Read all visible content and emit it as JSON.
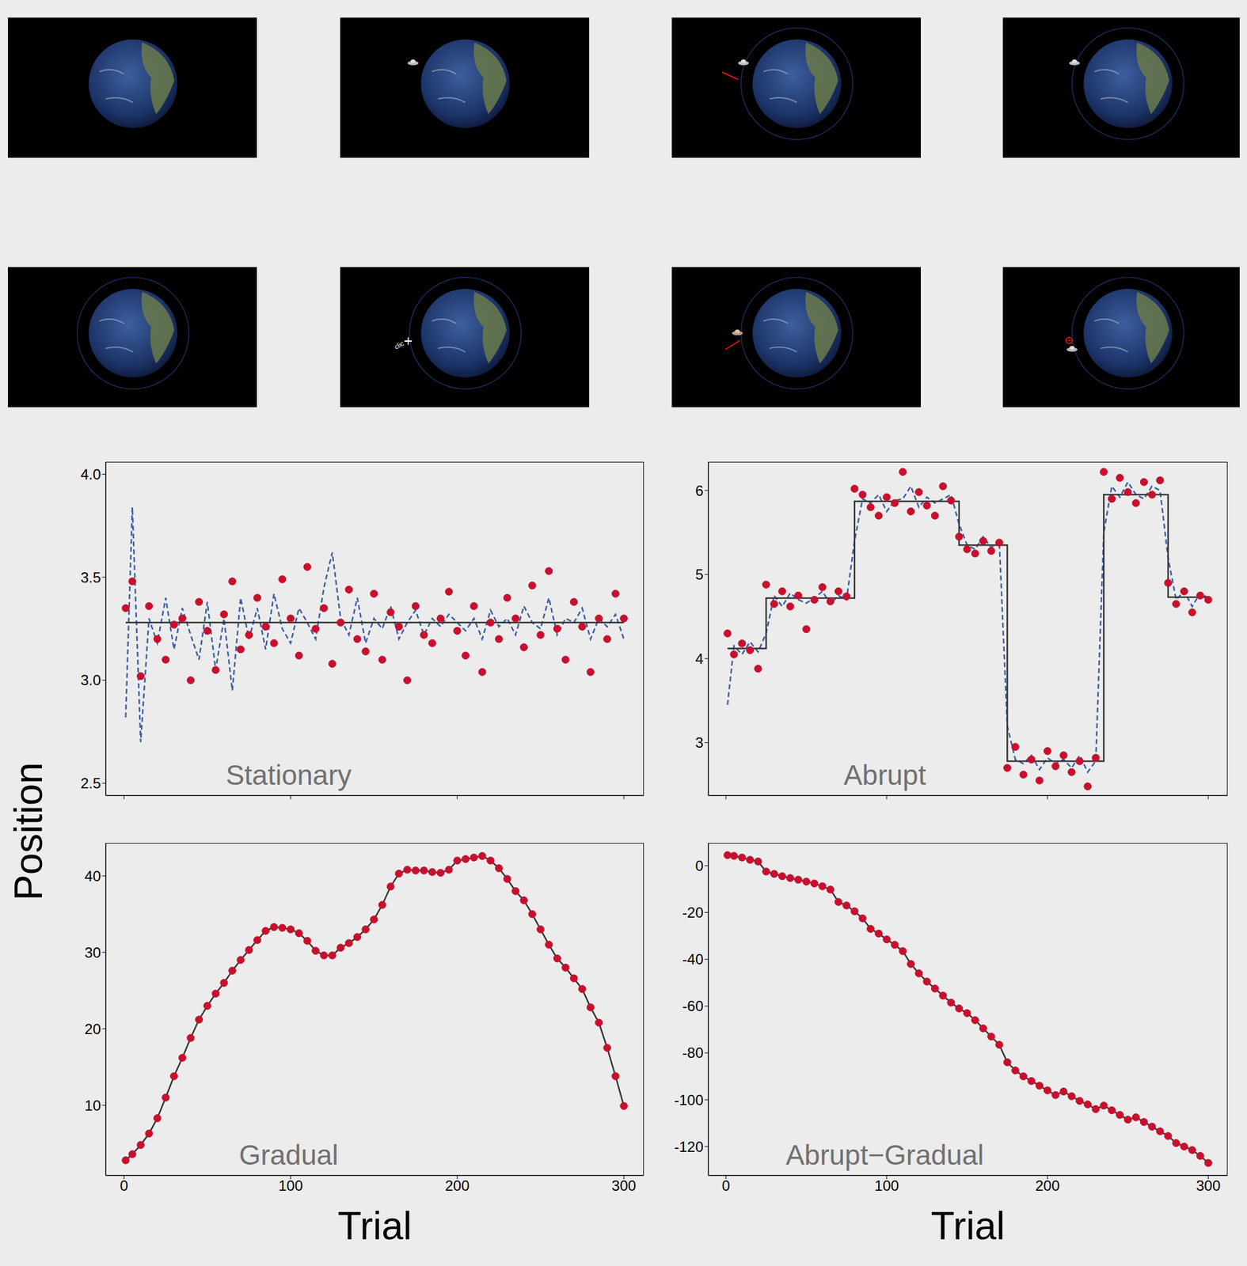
{
  "figure": {
    "ylabel": "Position",
    "xlabel": "Trial",
    "screen_cursor_text": "clic"
  },
  "chart_data": [
    {
      "type": "scatter",
      "title": "Stationary",
      "x": [
        1,
        5,
        10,
        15,
        20,
        25,
        30,
        35,
        40,
        45,
        50,
        55,
        60,
        65,
        70,
        75,
        80,
        85,
        90,
        95,
        100,
        105,
        110,
        115,
        120,
        125,
        130,
        135,
        140,
        145,
        150,
        155,
        160,
        165,
        170,
        175,
        180,
        185,
        190,
        195,
        200,
        205,
        210,
        215,
        220,
        225,
        230,
        235,
        240,
        245,
        250,
        255,
        260,
        265,
        270,
        275,
        280,
        285,
        290,
        295,
        300
      ],
      "xlim": [
        -11,
        312
      ],
      "xticks": [
        0,
        100,
        200,
        300
      ],
      "ylim": [
        2.44,
        4.06
      ],
      "yticks": [
        2.5,
        {
          "value": 3,
          "label": "3.0"
        },
        3.5,
        {
          "value": 4,
          "label": "4.0"
        }
      ],
      "tick_labels": "y",
      "grid": false,
      "series": [
        {
          "type": "scatter",
          "color": "#c8102e",
          "marker": "circle",
          "values": [
            3.35,
            3.48,
            3.02,
            3.36,
            3.2,
            3.1,
            3.27,
            3.3,
            3.0,
            3.38,
            3.24,
            3.05,
            3.32,
            3.48,
            3.15,
            3.22,
            3.4,
            3.26,
            3.18,
            3.49,
            3.3,
            3.12,
            3.55,
            3.25,
            3.35,
            3.08,
            3.28,
            3.44,
            3.2,
            3.14,
            3.42,
            3.1,
            3.33,
            3.26,
            3.0,
            3.36,
            3.22,
            3.18,
            3.3,
            3.43,
            3.24,
            3.12,
            3.36,
            3.04,
            3.28,
            3.2,
            3.4,
            3.3,
            3.16,
            3.46,
            3.22,
            3.53,
            3.25,
            3.1,
            3.38,
            3.26,
            3.04,
            3.3,
            3.2,
            3.42,
            3.3
          ]
        },
        {
          "type": "line",
          "color": "#3a5ca8",
          "line_style": "dashed",
          "values": [
            2.82,
            3.84,
            2.7,
            3.3,
            3.18,
            3.4,
            3.15,
            3.35,
            3.22,
            3.1,
            3.38,
            3.05,
            3.3,
            2.95,
            3.4,
            3.2,
            3.35,
            3.15,
            3.42,
            3.25,
            3.18,
            3.35,
            3.28,
            3.2,
            3.45,
            3.62,
            3.3,
            3.22,
            3.4,
            3.18,
            3.3,
            3.25,
            3.36,
            3.2,
            3.28,
            3.34,
            3.22,
            3.3,
            3.26,
            3.32,
            3.28,
            3.24,
            3.3,
            3.2,
            3.34,
            3.26,
            3.3,
            3.22,
            3.36,
            3.28,
            3.25,
            3.4,
            3.22,
            3.3,
            3.28,
            3.35,
            3.2,
            3.3,
            3.26,
            3.32,
            3.2
          ]
        },
        {
          "type": "line",
          "color": "#333333",
          "line_style": "solid",
          "values": [
            3.28,
            3.28,
            3.28,
            3.28,
            3.28,
            3.28,
            3.28,
            3.28,
            3.28,
            3.28,
            3.28,
            3.28,
            3.28,
            3.28,
            3.28,
            3.28,
            3.28,
            3.28,
            3.28,
            3.28,
            3.28,
            3.28,
            3.28,
            3.28,
            3.28,
            3.28,
            3.28,
            3.28,
            3.28,
            3.28,
            3.28,
            3.28,
            3.28,
            3.28,
            3.28,
            3.28,
            3.28,
            3.28,
            3.28,
            3.28,
            3.28,
            3.28,
            3.28,
            3.28,
            3.28,
            3.28,
            3.28,
            3.28,
            3.28,
            3.28,
            3.28,
            3.28,
            3.28,
            3.28,
            3.28,
            3.28,
            3.28,
            3.28,
            3.28,
            3.28,
            3.28
          ]
        }
      ]
    },
    {
      "type": "scatter",
      "title": "Abrupt",
      "x": [
        1,
        5,
        10,
        15,
        20,
        25,
        30,
        35,
        40,
        45,
        50,
        55,
        60,
        65,
        70,
        75,
        80,
        85,
        90,
        95,
        100,
        105,
        110,
        115,
        120,
        125,
        130,
        135,
        140,
        145,
        150,
        155,
        160,
        165,
        170,
        175,
        180,
        185,
        190,
        195,
        200,
        205,
        210,
        215,
        220,
        225,
        230,
        235,
        240,
        245,
        250,
        255,
        260,
        265,
        270,
        275,
        280,
        285,
        290,
        295,
        300
      ],
      "xlim": [
        -11,
        312
      ],
      "xticks": [
        0,
        100,
        200,
        300
      ],
      "ylim": [
        2.37,
        6.34
      ],
      "yticks": [
        3,
        4,
        5,
        6
      ],
      "tick_labels": "y",
      "grid": false,
      "series": [
        {
          "type": "scatter",
          "color": "#c8102e",
          "marker": "circle",
          "values": [
            4.3,
            4.05,
            4.18,
            4.1,
            3.88,
            4.88,
            4.65,
            4.8,
            4.62,
            4.75,
            4.35,
            4.7,
            4.85,
            4.68,
            4.8,
            4.74,
            6.02,
            5.95,
            5.8,
            5.7,
            5.92,
            5.85,
            6.22,
            5.75,
            5.98,
            5.82,
            5.7,
            6.05,
            5.88,
            5.45,
            5.3,
            5.25,
            5.4,
            5.28,
            5.38,
            2.7,
            2.95,
            2.62,
            2.8,
            2.55,
            2.9,
            2.72,
            2.85,
            2.65,
            2.78,
            2.48,
            2.82,
            6.22,
            5.9,
            6.15,
            5.98,
            5.85,
            6.1,
            5.95,
            6.12,
            4.9,
            4.65,
            4.8,
            4.55,
            4.75,
            4.7
          ]
        },
        {
          "type": "line",
          "color": "#3a5ca8",
          "line_style": "dashed",
          "values": [
            3.45,
            4.15,
            4.05,
            4.2,
            4.08,
            4.3,
            4.75,
            4.62,
            4.78,
            4.7,
            4.66,
            4.72,
            4.8,
            4.65,
            4.75,
            4.7,
            5.4,
            5.9,
            5.85,
            5.95,
            5.75,
            5.88,
            5.9,
            6.05,
            5.8,
            5.92,
            5.85,
            5.9,
            5.95,
            5.6,
            5.35,
            5.3,
            5.45,
            5.32,
            5.4,
            3.2,
            2.8,
            2.75,
            2.85,
            2.68,
            2.82,
            2.75,
            2.8,
            2.7,
            2.85,
            2.65,
            2.78,
            5.5,
            6.05,
            5.92,
            6.1,
            5.95,
            5.9,
            6.05,
            6.0,
            5.2,
            4.7,
            4.8,
            4.62,
            4.78,
            4.72
          ]
        },
        {
          "type": "step",
          "color": "#333333",
          "line_style": "solid",
          "values": [
            4.12,
            4.12,
            4.12,
            4.12,
            4.12,
            4.72,
            4.72,
            4.72,
            4.72,
            4.72,
            4.72,
            4.72,
            4.72,
            4.72,
            4.72,
            4.72,
            5.87,
            5.87,
            5.87,
            5.87,
            5.87,
            5.87,
            5.87,
            5.87,
            5.87,
            5.87,
            5.87,
            5.87,
            5.87,
            5.35,
            5.35,
            5.35,
            5.35,
            5.35,
            5.35,
            2.78,
            2.78,
            2.78,
            2.78,
            2.78,
            2.78,
            2.78,
            2.78,
            2.78,
            2.78,
            2.78,
            2.78,
            5.95,
            5.95,
            5.95,
            5.95,
            5.95,
            5.95,
            5.95,
            5.95,
            4.73,
            4.73,
            4.73,
            4.73,
            4.73,
            4.73
          ]
        }
      ]
    },
    {
      "type": "scatter",
      "title": "Gradual",
      "x": [
        1,
        5,
        10,
        15,
        20,
        25,
        30,
        35,
        40,
        45,
        50,
        55,
        60,
        65,
        70,
        75,
        80,
        85,
        90,
        95,
        100,
        105,
        110,
        115,
        120,
        125,
        130,
        135,
        140,
        145,
        150,
        155,
        160,
        165,
        170,
        175,
        180,
        185,
        190,
        195,
        200,
        205,
        210,
        215,
        220,
        225,
        230,
        235,
        240,
        245,
        250,
        255,
        260,
        265,
        270,
        275,
        280,
        285,
        290,
        295,
        300
      ],
      "xlim": [
        -11,
        312
      ],
      "xticks": [
        0,
        100,
        200,
        300
      ],
      "ylim": [
        0.8,
        44.3
      ],
      "yticks": [
        10,
        20,
        30,
        40
      ],
      "grid": false,
      "series": [
        {
          "type": "line",
          "color": "#333333",
          "line_style": "solid",
          "values": [
            2.8,
            3.6,
            4.8,
            6.3,
            8.3,
            11.0,
            13.8,
            16.2,
            18.8,
            21.2,
            23.0,
            24.6,
            26.0,
            27.6,
            29.0,
            30.3,
            31.6,
            32.8,
            33.3,
            33.2,
            33.0,
            32.5,
            31.5,
            30.2,
            29.6,
            29.6,
            30.6,
            31.2,
            32.0,
            33.0,
            34.3,
            36.2,
            38.6,
            40.3,
            40.8,
            40.7,
            40.7,
            40.5,
            40.4,
            40.8,
            42.0,
            42.2,
            42.4,
            42.6,
            42.0,
            41.0,
            39.6,
            38.0,
            36.8,
            35.0,
            33.0,
            31.0,
            29.2,
            28.0,
            26.6,
            25.2,
            22.8,
            20.8,
            17.5,
            13.8,
            9.9
          ]
        },
        {
          "type": "scatter",
          "color": "#c8102e",
          "marker": "circle",
          "values": [
            2.8,
            3.6,
            4.8,
            6.3,
            8.3,
            11.0,
            13.8,
            16.2,
            18.8,
            21.2,
            23.0,
            24.6,
            26.0,
            27.6,
            29.0,
            30.3,
            31.6,
            32.8,
            33.3,
            33.2,
            33.0,
            32.5,
            31.5,
            30.2,
            29.6,
            29.6,
            30.6,
            31.2,
            32.0,
            33.0,
            34.3,
            36.2,
            38.6,
            40.3,
            40.8,
            40.7,
            40.7,
            40.5,
            40.4,
            40.8,
            42.0,
            42.2,
            42.4,
            42.6,
            42.0,
            41.0,
            39.6,
            38.0,
            36.8,
            35.0,
            33.0,
            31.0,
            29.2,
            28.0,
            26.6,
            25.2,
            22.8,
            20.8,
            17.5,
            13.8,
            9.9
          ]
        }
      ]
    },
    {
      "type": "scatter",
      "title": "Abrupt−Gradual",
      "x": [
        1,
        5,
        10,
        15,
        20,
        25,
        30,
        35,
        40,
        45,
        50,
        55,
        60,
        65,
        70,
        75,
        80,
        85,
        90,
        95,
        100,
        105,
        110,
        115,
        120,
        125,
        130,
        135,
        140,
        145,
        150,
        155,
        160,
        165,
        170,
        175,
        180,
        185,
        190,
        195,
        200,
        205,
        210,
        215,
        220,
        225,
        230,
        235,
        240,
        245,
        250,
        255,
        260,
        265,
        270,
        275,
        280,
        285,
        290,
        295,
        300
      ],
      "xlim": [
        -11,
        312
      ],
      "xticks": [
        0,
        100,
        200,
        300
      ],
      "ylim": [
        -132.4,
        9.7
      ],
      "yticks": [
        -120,
        -100,
        -80,
        -60,
        -40,
        -20,
        0
      ],
      "grid": false,
      "series": [
        {
          "type": "line",
          "color": "#333333",
          "line_style": "solid",
          "values": [
            4.5,
            4.2,
            3.5,
            2.5,
            1.8,
            -2.5,
            -3.5,
            -4.5,
            -5.3,
            -6.0,
            -6.8,
            -7.6,
            -8.8,
            -10.2,
            -15.5,
            -17.0,
            -19.5,
            -22.5,
            -27.0,
            -29.0,
            -31.5,
            -33.8,
            -36.5,
            -42.0,
            -46.0,
            -49.5,
            -52.5,
            -55.5,
            -58.5,
            -61.0,
            -63.0,
            -66.0,
            -69.5,
            -73.0,
            -76.5,
            -84.0,
            -87.5,
            -90.0,
            -92.0,
            -94.0,
            -96.0,
            -98.0,
            -96.5,
            -98.5,
            -100.5,
            -102.0,
            -104.0,
            -102.5,
            -104.5,
            -106.5,
            -108.5,
            -107.5,
            -109.5,
            -111.5,
            -113.5,
            -115.5,
            -118.5,
            -120.0,
            -121.5,
            -124.0,
            -127.0
          ]
        },
        {
          "type": "scatter",
          "color": "#c8102e",
          "marker": "circle",
          "values": [
            4.5,
            4.2,
            3.5,
            2.5,
            1.8,
            -2.5,
            -3.5,
            -4.5,
            -5.3,
            -6.0,
            -6.8,
            -7.6,
            -8.8,
            -10.2,
            -15.5,
            -17.0,
            -19.5,
            -22.5,
            -27.0,
            -29.0,
            -31.5,
            -33.8,
            -36.5,
            -42.0,
            -46.0,
            -49.5,
            -52.5,
            -55.5,
            -58.5,
            -61.0,
            -63.0,
            -66.0,
            -69.5,
            -73.0,
            -76.5,
            -84.0,
            -87.5,
            -90.0,
            -92.0,
            -94.0,
            -96.0,
            -98.0,
            -96.5,
            -98.5,
            -100.5,
            -102.0,
            -104.0,
            -102.5,
            -104.5,
            -106.5,
            -108.5,
            -107.5,
            -109.5,
            -111.5,
            -113.5,
            -115.5,
            -118.5,
            -120.0,
            -121.5,
            -124.0,
            -127.0
          ]
        }
      ]
    }
  ]
}
